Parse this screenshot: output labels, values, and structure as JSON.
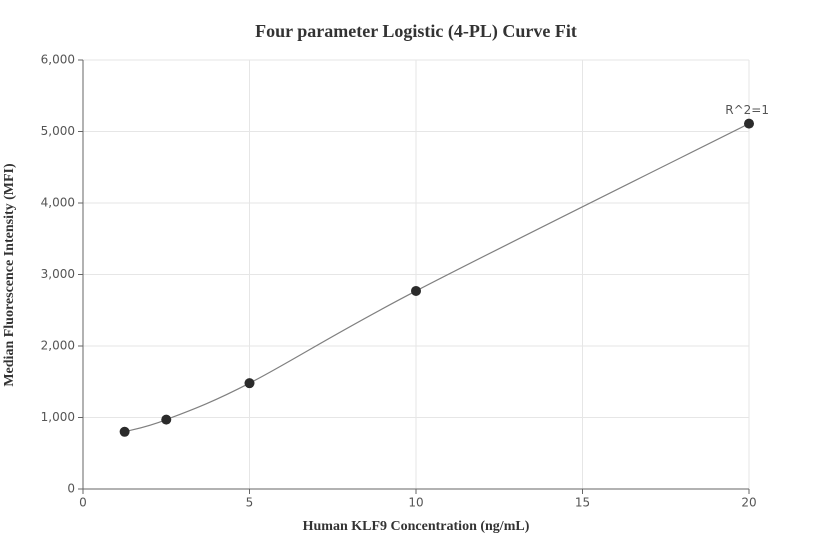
{
  "chart_data": {
    "type": "scatter",
    "title": "Four parameter Logistic (4-PL) Curve Fit",
    "x_label": "Human KLF9 Concentration (ng/mL)",
    "y_label": "Median Fluorescence Intensity (MFI)",
    "annotation": "R^2=1",
    "series": [
      {
        "x": [
          1.25,
          2.5,
          5,
          10,
          20
        ],
        "values": [
          800,
          970,
          1480,
          2770,
          5110
        ],
        "color": "#2b2b2b",
        "line_color": "#808080"
      }
    ],
    "xlim": [
      0,
      20
    ],
    "xticks": [
      0,
      5,
      10,
      15,
      20
    ],
    "ylim": [
      0,
      6000
    ],
    "yticks": [
      0,
      {
        "value": 1000,
        "label": "1,000"
      },
      {
        "value": 2000,
        "label": "2,000"
      },
      {
        "value": 3000,
        "label": "3,000"
      },
      {
        "value": 4000,
        "label": "4,000"
      },
      {
        "value": 5000,
        "label": "5,000"
      },
      {
        "value": 6000,
        "label": "6,000"
      }
    ],
    "grid": true
  }
}
